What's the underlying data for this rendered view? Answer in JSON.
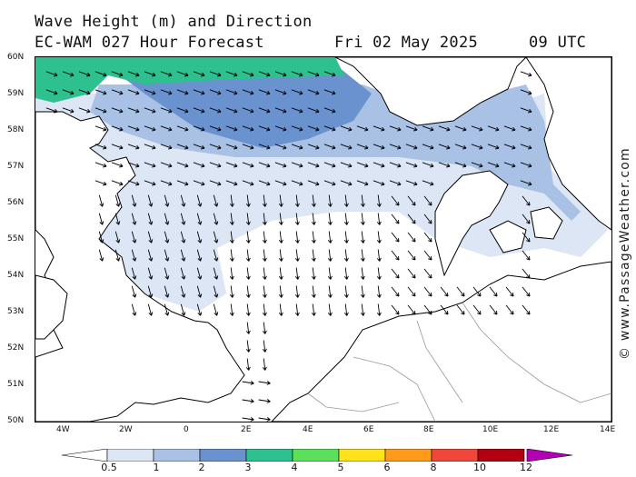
{
  "header": {
    "title_line_1": "Wave Height (m) and Direction",
    "model_label": "EC-WAM 027 Hour Forecast",
    "date_label": "Fri 02 May 2025",
    "time_label": "09 UTC"
  },
  "credit": "© www.PassageWeather.com",
  "map": {
    "lat_labels": [
      "60N",
      "59N",
      "58N",
      "57N",
      "56N",
      "55N",
      "54N",
      "53N",
      "52N",
      "51N",
      "50N"
    ],
    "lon_labels": [
      "4W",
      "2W",
      "0",
      "2E",
      "4E",
      "6E",
      "8E",
      "10E",
      "12E",
      "14E"
    ],
    "colors": {
      "land": "#ffffff",
      "sea_0_05": "#ffffff",
      "band_05_1": "#dce6f5",
      "band_1_2": "#a8c1e4",
      "band_2_3": "#6a92cf",
      "band_3_4": "#2ec08f",
      "coastline": "#000000",
      "border": "#999999",
      "arrow": "#000000"
    }
  },
  "legend": {
    "tick_labels": [
      "0.5",
      "1",
      "2",
      "3",
      "4",
      "5",
      "6",
      "8",
      "10",
      "12"
    ],
    "colors": [
      "#dce6f5",
      "#a8c1e4",
      "#6a92cf",
      "#2ec08f",
      "#5ce05c",
      "#ffe21a",
      "#ff9a1a",
      "#f0473a",
      "#b30010",
      "#b400b4"
    ]
  }
}
